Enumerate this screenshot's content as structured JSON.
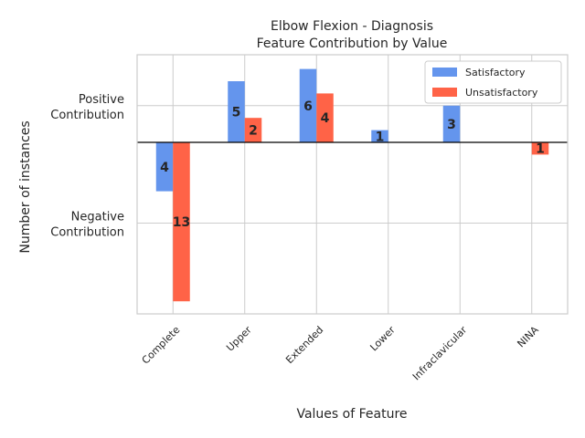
{
  "chart_data": {
    "type": "bar",
    "title": "Elbow Flexion - Diagnosis",
    "subtitle": "Feature Contribution by Value",
    "xlabel": "Values of Feature",
    "ylabel": "Number of instances",
    "ytick_labels": [
      "Positive Contribution",
      "Negative Contribution"
    ],
    "categories": [
      "Complete",
      "Upper",
      "Extended",
      "Lower",
      "Infraclavicular",
      "NINA"
    ],
    "series": [
      {
        "name": "Satisfactory",
        "color": "#6495ED",
        "values": [
          -4,
          5,
          6,
          1,
          3,
          0
        ],
        "labels": [
          "4",
          "5",
          "6",
          "1",
          "3",
          ""
        ]
      },
      {
        "name": "Unsatisfactory",
        "color": "#FF6347",
        "values": [
          -13,
          2,
          4,
          0,
          0,
          -1
        ],
        "labels": [
          "13",
          "2",
          "4",
          "",
          "",
          "1"
        ]
      }
    ],
    "legend_position": "upper-right",
    "grid": true
  }
}
